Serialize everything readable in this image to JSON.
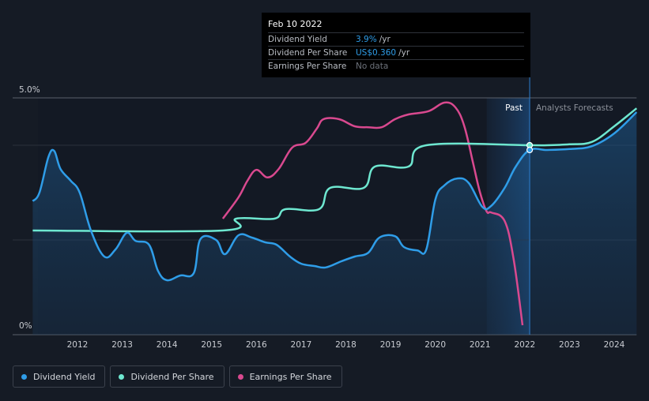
{
  "tooltip": {
    "date": "Feb 10 2022",
    "rows": [
      {
        "label": "Dividend Yield",
        "value": "3.9%",
        "unit": "/yr"
      },
      {
        "label": "Dividend Per Share",
        "value": "US$0.360",
        "unit": "/yr"
      },
      {
        "label": "Earnings Per Share",
        "value": "No data"
      }
    ]
  },
  "legend": [
    {
      "label": "Dividend Yield",
      "color": "#2f9de8"
    },
    {
      "label": "Dividend Per Share",
      "color": "#6ee7d0"
    },
    {
      "label": "Earnings Per Share",
      "color": "#d9498f"
    }
  ],
  "chart_data": {
    "type": "line",
    "x_tick_labels": [
      "2012",
      "2013",
      "2014",
      "2015",
      "2016",
      "2017",
      "2018",
      "2019",
      "2020",
      "2021",
      "2022",
      "2023",
      "2024"
    ],
    "y_tick_labels": [
      "5.0%",
      "0%"
    ],
    "ylim": [
      0,
      5.0
    ],
    "xlim": [
      2011.0,
      2024.5
    ],
    "past_label": "Past",
    "forecast_label": "Analysts Forecasts",
    "divider_x": 2022.11,
    "colors": {
      "yield": "#2f9de8",
      "dps": "#6ee7d0",
      "eps": "#d9498f"
    },
    "series": [
      {
        "name": "Dividend Yield",
        "key": "yield",
        "points": [
          [
            2011.0,
            2.82
          ],
          [
            2011.15,
            3.0
          ],
          [
            2011.35,
            3.75
          ],
          [
            2011.48,
            3.88
          ],
          [
            2011.62,
            3.5
          ],
          [
            2011.85,
            3.25
          ],
          [
            2012.05,
            3.0
          ],
          [
            2012.3,
            2.2
          ],
          [
            2012.6,
            1.65
          ],
          [
            2012.85,
            1.8
          ],
          [
            2013.1,
            2.15
          ],
          [
            2013.3,
            1.98
          ],
          [
            2013.6,
            1.9
          ],
          [
            2013.8,
            1.35
          ],
          [
            2014.0,
            1.15
          ],
          [
            2014.3,
            1.25
          ],
          [
            2014.6,
            1.3
          ],
          [
            2014.75,
            2.02
          ],
          [
            2015.1,
            2.0
          ],
          [
            2015.3,
            1.7
          ],
          [
            2015.6,
            2.1
          ],
          [
            2015.9,
            2.05
          ],
          [
            2016.2,
            1.95
          ],
          [
            2016.45,
            1.9
          ],
          [
            2016.75,
            1.65
          ],
          [
            2017.0,
            1.5
          ],
          [
            2017.3,
            1.45
          ],
          [
            2017.55,
            1.42
          ],
          [
            2017.9,
            1.55
          ],
          [
            2018.2,
            1.65
          ],
          [
            2018.5,
            1.73
          ],
          [
            2018.75,
            2.05
          ],
          [
            2019.1,
            2.08
          ],
          [
            2019.3,
            1.85
          ],
          [
            2019.6,
            1.78
          ],
          [
            2019.8,
            1.8
          ],
          [
            2020.0,
            2.85
          ],
          [
            2020.2,
            3.15
          ],
          [
            2020.5,
            3.3
          ],
          [
            2020.75,
            3.2
          ],
          [
            2021.05,
            2.7
          ],
          [
            2021.25,
            2.72
          ],
          [
            2021.55,
            3.1
          ],
          [
            2021.8,
            3.55
          ],
          [
            2022.11,
            3.9
          ],
          [
            2022.5,
            3.9
          ],
          [
            2023.0,
            3.92
          ],
          [
            2023.5,
            3.98
          ],
          [
            2024.0,
            4.25
          ],
          [
            2024.5,
            4.7
          ]
        ]
      },
      {
        "name": "Dividend Per Share",
        "key": "dps",
        "points": [
          [
            2011.0,
            2.2
          ],
          [
            2015.25,
            2.2
          ],
          [
            2015.55,
            2.45
          ],
          [
            2016.4,
            2.45
          ],
          [
            2016.65,
            2.65
          ],
          [
            2017.4,
            2.65
          ],
          [
            2017.65,
            3.1
          ],
          [
            2018.4,
            3.1
          ],
          [
            2018.65,
            3.55
          ],
          [
            2019.4,
            3.55
          ],
          [
            2019.8,
            4.0
          ],
          [
            2022.11,
            4.0
          ],
          [
            2022.5,
            4.0
          ],
          [
            2023.0,
            4.02
          ],
          [
            2023.5,
            4.07
          ],
          [
            2024.0,
            4.4
          ],
          [
            2024.5,
            4.78
          ]
        ]
      },
      {
        "name": "Earnings Per Share",
        "key": "eps",
        "points": [
          [
            2015.25,
            2.45
          ],
          [
            2015.6,
            2.9
          ],
          [
            2015.8,
            3.25
          ],
          [
            2016.0,
            3.48
          ],
          [
            2016.25,
            3.32
          ],
          [
            2016.5,
            3.5
          ],
          [
            2016.8,
            3.95
          ],
          [
            2017.1,
            4.05
          ],
          [
            2017.35,
            4.35
          ],
          [
            2017.5,
            4.55
          ],
          [
            2017.85,
            4.55
          ],
          [
            2018.2,
            4.4
          ],
          [
            2018.5,
            4.38
          ],
          [
            2018.8,
            4.38
          ],
          [
            2019.1,
            4.55
          ],
          [
            2019.4,
            4.65
          ],
          [
            2019.85,
            4.72
          ],
          [
            2020.2,
            4.9
          ],
          [
            2020.45,
            4.8
          ],
          [
            2020.65,
            4.4
          ],
          [
            2020.85,
            3.6
          ],
          [
            2021.0,
            3.0
          ],
          [
            2021.15,
            2.6
          ],
          [
            2021.25,
            2.58
          ],
          [
            2021.55,
            2.4
          ],
          [
            2021.75,
            1.6
          ],
          [
            2021.95,
            0.2
          ]
        ]
      }
    ],
    "markers": [
      {
        "series": "dps",
        "x": 2022.11,
        "y": 4.0
      },
      {
        "series": "yield",
        "x": 2022.11,
        "y": 3.9
      }
    ]
  }
}
